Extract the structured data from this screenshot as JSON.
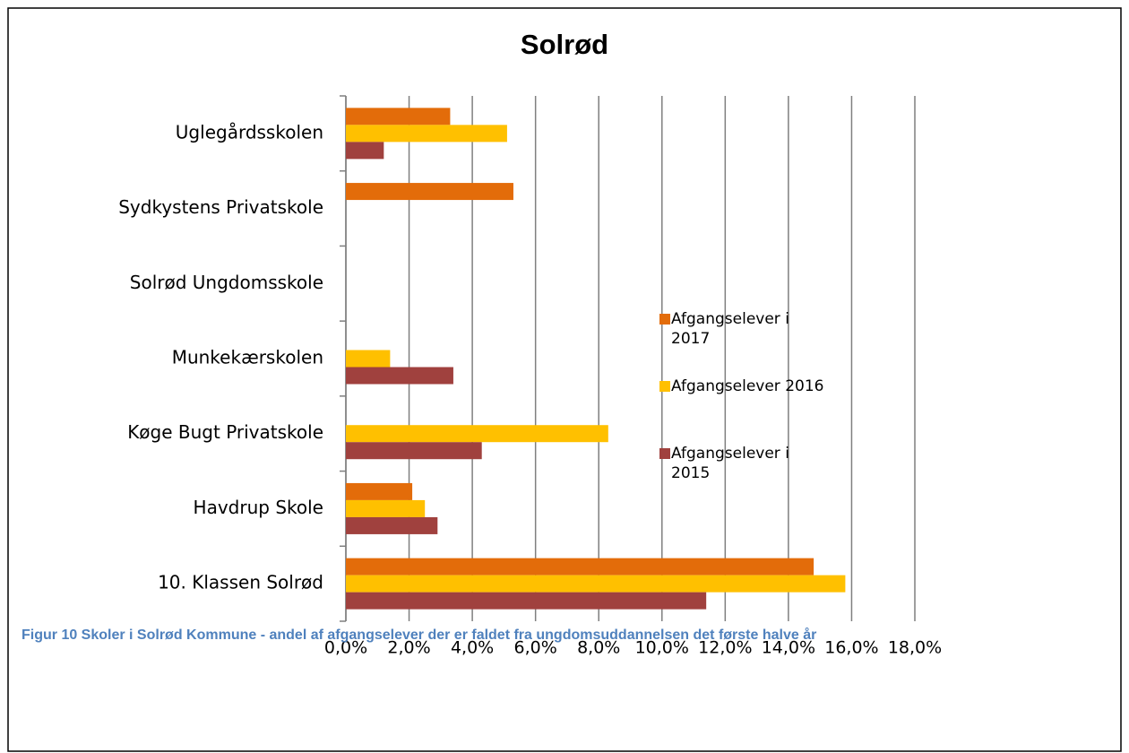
{
  "chart_data": {
    "type": "hbar",
    "title": "Solrød",
    "caption": "Figur 10 Skoler i Solrød Kommune - andel af afgangselever der er faldet fra ungdomsuddannelsen det første halve år",
    "categories": [
      "Uglegårdsskolen",
      "Sydkystens Privatskole",
      "Solrød Ungdomsskole",
      "Munkekærskolen",
      "Køge Bugt Privatskole",
      "Havdrup Skole",
      "10.  Klassen Solrød"
    ],
    "series": [
      {
        "name": "Afgangselever i 2017",
        "color": "#e36c0a",
        "values": [
          3.3,
          5.3,
          null,
          null,
          null,
          2.1,
          14.8
        ]
      },
      {
        "name": "Afgangselever 2016",
        "color": "#ffc000",
        "values": [
          5.1,
          null,
          null,
          1.4,
          8.3,
          2.5,
          15.8
        ]
      },
      {
        "name": "Afgangselever i 2015",
        "color": "#a0413e",
        "values": [
          1.2,
          null,
          null,
          3.4,
          4.3,
          2.9,
          11.4
        ]
      }
    ],
    "xlim": [
      0,
      18
    ],
    "xticks": [
      {
        "value": 0,
        "label": "0,0%"
      },
      {
        "value": 2,
        "label": "2,0%"
      },
      {
        "value": 4,
        "label": "4,0%"
      },
      {
        "value": 6,
        "label": "6,0%"
      },
      {
        "value": 8,
        "label": "8,0%"
      },
      {
        "value": 10,
        "label": "10,0%"
      },
      {
        "value": 12,
        "label": "12,0%"
      },
      {
        "value": 14,
        "label": "14,0%"
      },
      {
        "value": 16,
        "label": "16,0%"
      },
      {
        "value": 18,
        "label": "18,0%"
      }
    ],
    "grid": true,
    "legend": "right"
  }
}
